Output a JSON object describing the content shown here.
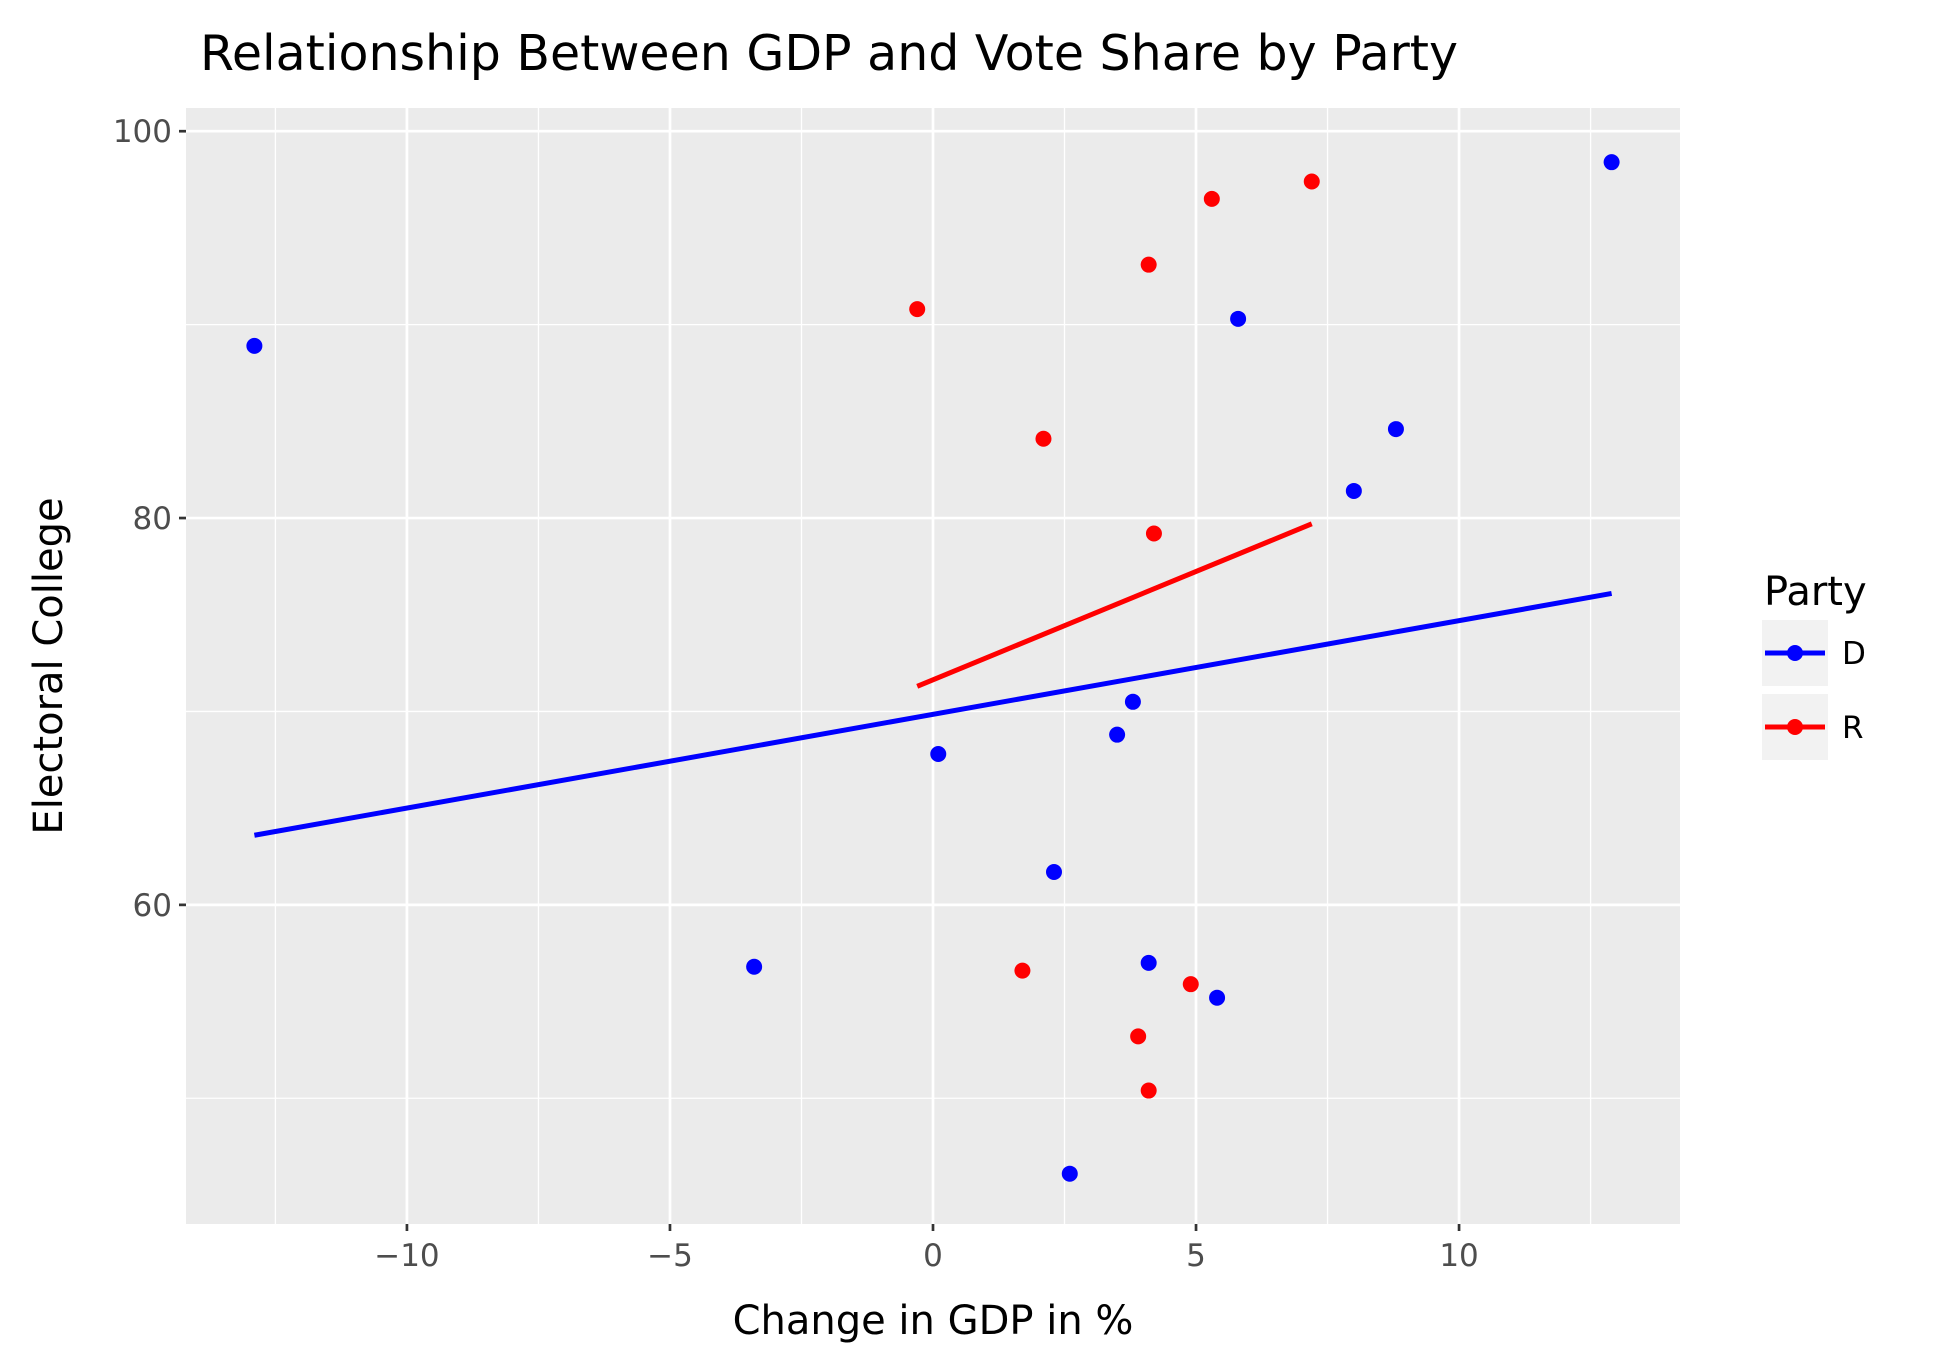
{
  "chart_data": {
    "type": "scatter",
    "title": "Relationship Between GDP and Vote Share by Party",
    "xlabel": "Change in GDP in %",
    "ylabel": "Electoral College",
    "xlim": [
      -14.2,
      14.2
    ],
    "ylim": [
      43.5,
      101.2
    ],
    "x_ticks": [
      -10,
      -5,
      0,
      5,
      10
    ],
    "x_tick_labels": [
      "−10",
      "−5",
      "0",
      "5",
      "10"
    ],
    "y_ticks": [
      60,
      80,
      100
    ],
    "y_tick_labels": [
      "60",
      "80",
      "100"
    ],
    "grid": true,
    "legend": {
      "title": "Party",
      "position": "right"
    },
    "series": [
      {
        "name": "D",
        "color": "#0000ff",
        "points": [
          {
            "x": -12.9,
            "y": 88.9
          },
          {
            "x": 12.9,
            "y": 98.4
          },
          {
            "x": 5.8,
            "y": 90.3
          },
          {
            "x": 8.8,
            "y": 84.6
          },
          {
            "x": 8.0,
            "y": 81.4
          },
          {
            "x": 3.8,
            "y": 70.5
          },
          {
            "x": 3.5,
            "y": 68.8
          },
          {
            "x": 0.1,
            "y": 67.8
          },
          {
            "x": 2.3,
            "y": 61.7
          },
          {
            "x": -3.4,
            "y": 56.8
          },
          {
            "x": 4.1,
            "y": 57.0
          },
          {
            "x": 5.4,
            "y": 55.2
          },
          {
            "x": 2.6,
            "y": 46.1
          }
        ],
        "fit": [
          {
            "x": -12.9,
            "y": 63.6
          },
          {
            "x": 12.9,
            "y": 76.1
          }
        ]
      },
      {
        "name": "R",
        "color": "#ff0000",
        "points": [
          {
            "x": 7.2,
            "y": 97.4
          },
          {
            "x": 5.3,
            "y": 96.5
          },
          {
            "x": 4.1,
            "y": 93.1
          },
          {
            "x": -0.3,
            "y": 90.8
          },
          {
            "x": 2.1,
            "y": 84.1
          },
          {
            "x": 4.2,
            "y": 79.2
          },
          {
            "x": 1.7,
            "y": 56.6
          },
          {
            "x": 4.9,
            "y": 55.9
          },
          {
            "x": 3.9,
            "y": 53.2
          },
          {
            "x": 4.1,
            "y": 50.4
          }
        ],
        "fit": [
          {
            "x": -0.3,
            "y": 71.3
          },
          {
            "x": 7.2,
            "y": 79.7
          }
        ]
      }
    ]
  }
}
